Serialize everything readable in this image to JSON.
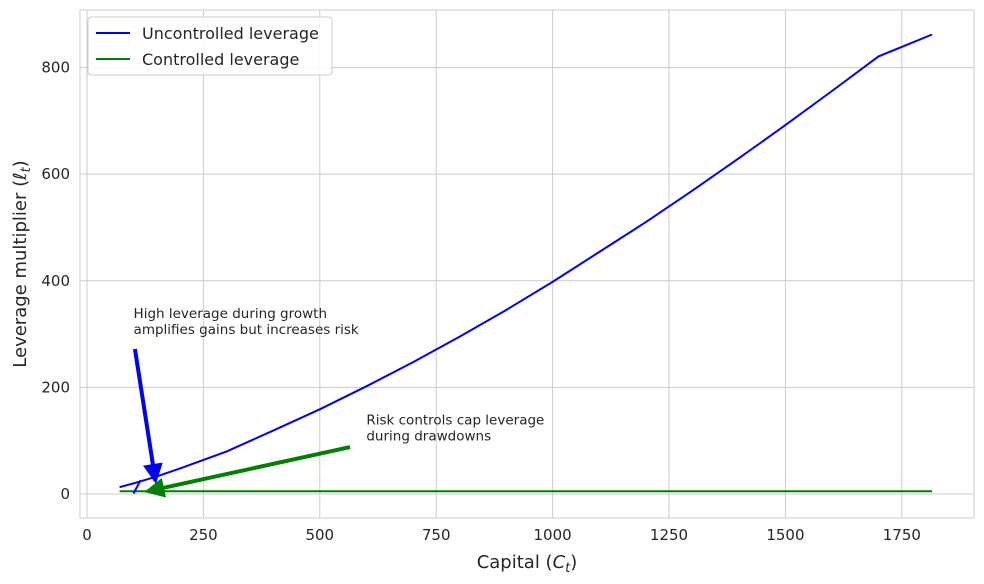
{
  "chart_data": {
    "type": "line",
    "xlabel_main": "Capital (",
    "xlabel_var": "C",
    "xlabel_sub": "t",
    "xlabel_close": ")",
    "ylabel_main": "Leverage multiplier (",
    "ylabel_var": "ℓ",
    "ylabel_sub": "t",
    "ylabel_close": ")",
    "xlim": [
      -15,
      1905
    ],
    "ylim": [
      -45,
      908
    ],
    "xticks": [
      0,
      250,
      500,
      750,
      1000,
      1250,
      1500,
      1750
    ],
    "xtick_labels": [
      "0",
      "250",
      "500",
      "750",
      "1000",
      "1250",
      "1500",
      "1750"
    ],
    "yticks": [
      0,
      200,
      400,
      600,
      800
    ],
    "ytick_labels": [
      "0",
      "200",
      "400",
      "600",
      "800"
    ],
    "grid": true,
    "legend_position": "top-left",
    "series": [
      {
        "name": "Uncontrolled leverage",
        "color": "#0000ff",
        "x": [
          70,
          100,
          150,
          200,
          250,
          300,
          400,
          500,
          600,
          700,
          800,
          900,
          1000,
          1100,
          1200,
          1300,
          1400,
          1500,
          1600,
          1700,
          1815
        ],
        "y": [
          13,
          20,
          33,
          48,
          64,
          80,
          119,
          159,
          202,
          247,
          295,
          345,
          398,
          454,
          510,
          569,
          630,
          692,
          756,
          821,
          862
        ]
      },
      {
        "name": "Controlled leverage",
        "color": "#008000",
        "x": [
          70,
          1815
        ],
        "y": [
          5,
          5
        ]
      }
    ],
    "extra_segment": {
      "color": "#0000ff",
      "x": [
        100,
        115
      ],
      "y": [
        1,
        26
      ]
    },
    "annotations": [
      {
        "lines": [
          "High leverage during growth",
          "amplifies gains but increases risk"
        ],
        "text_x": 100,
        "text_y": 330,
        "arrow_from": [
          103,
          272
        ],
        "arrow_to": [
          147,
          25
        ],
        "color": "#0000ff"
      },
      {
        "lines": [
          "Risk controls cap leverage",
          "during drawdowns"
        ],
        "text_x": 600,
        "text_y": 130,
        "arrow_from": [
          565,
          88
        ],
        "arrow_to": [
          130,
          5
        ],
        "color": "#008000"
      }
    ]
  }
}
